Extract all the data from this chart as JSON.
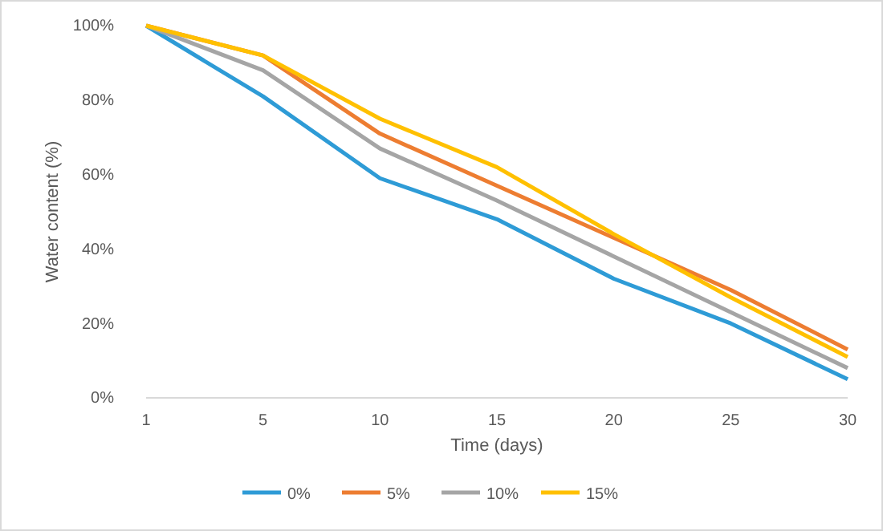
{
  "chart_data": {
    "type": "line",
    "xlabel": "Time (days)",
    "ylabel": "Water content (%)",
    "categories": [
      "1",
      "5",
      "10",
      "15",
      "20",
      "25",
      "30"
    ],
    "ylim": [
      0,
      100
    ],
    "yticks": [
      {
        "value": 0,
        "label": "0%"
      },
      {
        "value": 20,
        "label": "20%"
      },
      {
        "value": 40,
        "label": "40%"
      },
      {
        "value": 60,
        "label": "60%"
      },
      {
        "value": 80,
        "label": "80%"
      },
      {
        "value": 100,
        "label": "100%"
      }
    ],
    "grid": false,
    "legend": "bottom",
    "marker": "none",
    "line_style": "solid",
    "series": [
      {
        "name": "0%",
        "color": "#2e9bd6",
        "values": [
          100,
          81,
          59,
          48,
          32,
          20,
          5
        ]
      },
      {
        "name": "5%",
        "color": "#ed7d31",
        "values": [
          100,
          92,
          71,
          57,
          43,
          29,
          13
        ]
      },
      {
        "name": "10%",
        "color": "#a5a5a5",
        "values": [
          100,
          88,
          67,
          53,
          38,
          23,
          8
        ]
      },
      {
        "name": "15%",
        "color": "#ffc000",
        "values": [
          100,
          92,
          75,
          62,
          44,
          27,
          11
        ]
      }
    ]
  }
}
